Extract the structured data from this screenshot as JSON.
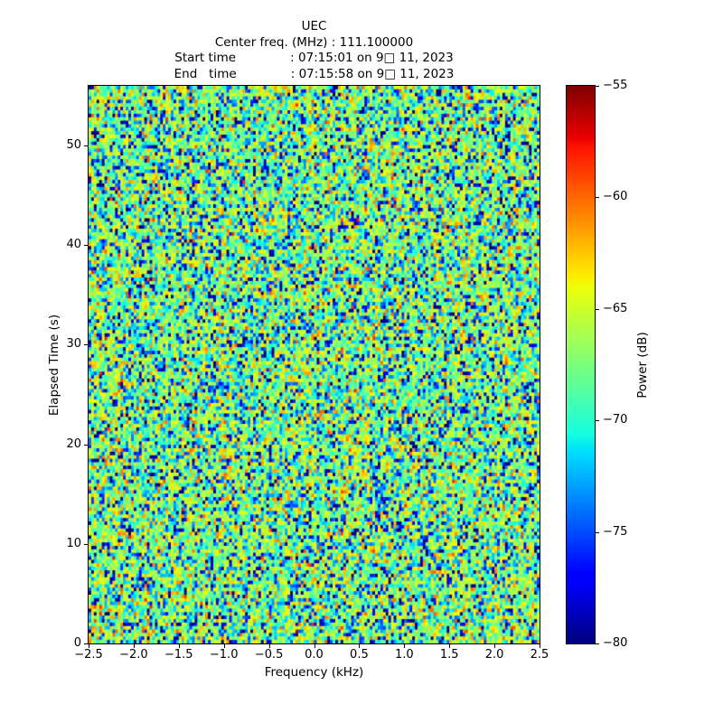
{
  "chart_data": {
    "type": "heatmap",
    "title": "UEC",
    "subtitle_lines": [
      "Center freq. (MHz) : 111.100000",
      "Start time              : 07:15:01 on 9□ 11, 2023",
      "End   time              : 07:15:58 on 9□ 11, 2023"
    ],
    "xlabel": "Frequency (kHz)",
    "ylabel": "Elapsed Time (s)",
    "xlim": [
      -2.5,
      2.5
    ],
    "ylim": [
      0,
      56
    ],
    "grid": false,
    "x_tick_values": [
      -2.5,
      -2.0,
      -1.5,
      -1.0,
      -0.5,
      0.0,
      0.5,
      1.0,
      1.5,
      2.0,
      2.5
    ],
    "x_tick_labels": [
      "−2.5",
      "−2.0",
      "−1.5",
      "−1.0",
      "−0.5",
      "0.0",
      "0.5",
      "1.0",
      "1.5",
      "2.0",
      "2.5"
    ],
    "y_tick_values": [
      0,
      10,
      20,
      30,
      40,
      50
    ],
    "y_tick_labels": [
      "0",
      "10",
      "20",
      "30",
      "40",
      "50"
    ],
    "colorbar": {
      "label": "Power (dB)",
      "vmin": -80,
      "vmax": -55,
      "tick_values": [
        -55,
        -60,
        -65,
        -70,
        -75,
        -80
      ],
      "tick_labels": [
        "−55",
        "−60",
        "−65",
        "−70",
        "−75",
        "−80"
      ],
      "colormap": "jet",
      "position": "right"
    },
    "data": {
      "description": "Uniform broadband noise filling the whole frequency-time plane; no visible carrier or structure. Power values mostly between −75 and −62 dB (cyan / green / yellow speckle in the jet colormap), with sparse dark-blue cells below −78 dB and rare orange-red cells above −61 dB.",
      "noise_model": {
        "distribution": "exponential-power",
        "offset_db": -66.5,
        "clip_db": [
          -80,
          -55
        ],
        "grid_cols": 170,
        "grid_rows": 160,
        "seed": 7
      }
    }
  }
}
